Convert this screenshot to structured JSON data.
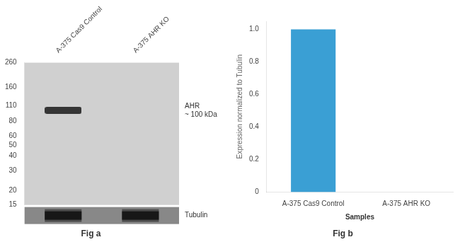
{
  "chart_data": [
    {
      "type": "scatter",
      "title": "Fig a",
      "categories": [
        "A-375 Cas9 Control",
        "A-375 AHR KO"
      ],
      "values": [
        100,
        null
      ],
      "color": "#1a1a1a",
      "marker": "band",
      "log": "y",
      "ylim": [
        15,
        260
      ],
      "yticks": [
        260,
        160,
        110,
        80,
        60,
        50,
        40,
        30,
        20,
        15
      ],
      "grid": false,
      "annotations": [
        {
          "text": "AHR",
          "y": 100
        },
        {
          "text": "~ 100 kDa",
          "y": 100
        },
        {
          "text": "Tubulin"
        }
      ]
    },
    {
      "type": "bar",
      "title": "Fig b",
      "categories": [
        "A-375 Cas9 Control",
        "A-375 AHR KO"
      ],
      "values": [
        1.0,
        0.0
      ],
      "color": "#3a9fd4",
      "xlabel": "Samples",
      "ylabel": "Expression normalized to Tubulin",
      "ylim": [
        0,
        1.05
      ],
      "yticks": [
        0,
        0.2,
        0.4,
        0.6,
        0.8,
        {
          "value": 1.0,
          "label": "1.0"
        }
      ],
      "grid": false
    }
  ]
}
